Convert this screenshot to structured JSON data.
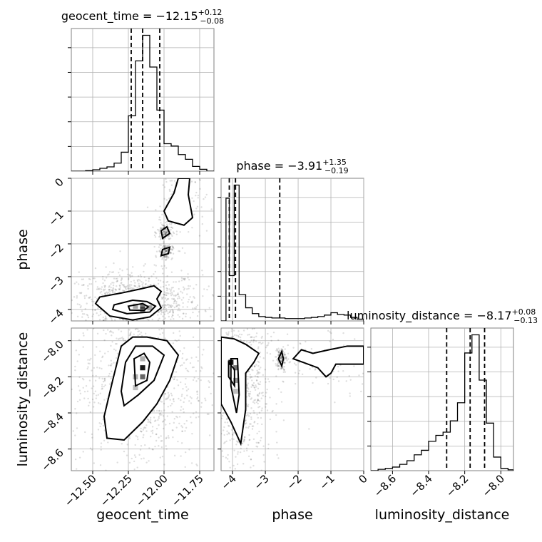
{
  "chart_data": {
    "type": "corner",
    "parameters": [
      "geocent_time",
      "phase",
      "luminosity_distance"
    ],
    "axis_labels": {
      "geocent_time": "geocent_time",
      "phase": "phase",
      "luminosity_distance": "luminosity_distance"
    },
    "ranges": {
      "geocent_time": [
        -12.65,
        -11.65
      ],
      "phase": [
        -4.35,
        0.0
      ],
      "luminosity_distance": [
        -8.72,
        -7.93
      ]
    },
    "ticks": {
      "geocent_time": [
        {
          "v": -12.5,
          "label": "−12.50"
        },
        {
          "v": -12.25,
          "label": "−12.25"
        },
        {
          "v": -12.0,
          "label": "−12.00"
        },
        {
          "v": -11.75,
          "label": "−11.75"
        }
      ],
      "phase": [
        {
          "v": -4,
          "label": "−4"
        },
        {
          "v": -3,
          "label": "−3"
        },
        {
          "v": -2,
          "label": "−2"
        },
        {
          "v": -1,
          "label": "−1"
        },
        {
          "v": 0,
          "label": "0"
        }
      ],
      "luminosity_distance": [
        {
          "v": -8.6,
          "label": "−8.6"
        },
        {
          "v": -8.4,
          "label": "−8.4"
        },
        {
          "v": -8.2,
          "label": "−8.2"
        },
        {
          "v": -8.0,
          "label": "−8.0"
        }
      ]
    },
    "marginals": [
      {
        "param": "geocent_time",
        "title_prefix": "geocent_time = −12.15",
        "title_sup": "+0.12",
        "title_sub": "−0.08",
        "quantiles": [
          -12.23,
          -12.15,
          -12.03
        ],
        "bin_edges": [
          -12.65,
          -12.6,
          -12.55,
          -12.5,
          -12.45,
          -12.4,
          -12.35,
          -12.3,
          -12.25,
          -12.2,
          -12.15,
          -12.1,
          -12.05,
          -12.0,
          -11.95,
          -11.9,
          -11.85,
          -11.8,
          -11.75,
          -11.7,
          -11.65
        ],
        "counts": [
          0,
          0,
          1,
          3,
          6,
          9,
          17,
          40,
          117,
          233,
          287,
          220,
          129,
          58,
          53,
          35,
          25,
          10,
          4,
          0
        ]
      },
      {
        "param": "phase",
        "title_prefix": "phase = −3.91",
        "title_sup": "+1.35",
        "title_sub": "−0.19",
        "quantiles": [
          -4.1,
          -3.91,
          -2.56
        ],
        "bin_edges": [
          -4.35,
          -4.2,
          -4.1,
          -3.95,
          -3.8,
          -3.6,
          -3.4,
          -3.2,
          -3.0,
          -2.8,
          -2.6,
          -2.4,
          -2.2,
          -2.0,
          -1.8,
          -1.6,
          -1.4,
          -1.2,
          -1.0,
          -0.8,
          -0.6,
          -0.4,
          -0.2,
          0.0
        ],
        "counts": [
          0,
          420,
          155,
          465,
          90,
          45,
          25,
          15,
          12,
          10,
          10,
          8,
          8,
          8,
          10,
          12,
          15,
          20,
          28,
          22,
          20,
          12,
          6
        ]
      },
      {
        "param": "luminosity_distance",
        "title_prefix": "luminosity_distance = −8.17",
        "title_sup": "+0.08",
        "title_sub": "−0.13",
        "quantiles": [
          -8.3,
          -8.17,
          -8.09
        ],
        "bin_edges": [
          -8.72,
          -8.68,
          -8.64,
          -8.6,
          -8.56,
          -8.52,
          -8.48,
          -8.44,
          -8.4,
          -8.36,
          -8.32,
          -8.28,
          -8.24,
          -8.2,
          -8.16,
          -8.12,
          -8.08,
          -8.04,
          -8.0,
          -7.96,
          -7.93
        ],
        "counts": [
          0,
          3,
          5,
          8,
          14,
          22,
          35,
          45,
          65,
          78,
          85,
          110,
          150,
          260,
          300,
          200,
          105,
          30,
          5,
          2
        ]
      }
    ],
    "pairs": [
      {
        "x": "geocent_time",
        "y": "phase",
        "contours": [
          [
            [
              -12.45,
              -3.62
            ],
            [
              -12.3,
              -3.5
            ],
            [
              -12.17,
              -3.38
            ],
            [
              -12.07,
              -3.28
            ],
            [
              -12.02,
              -3.45
            ],
            [
              -12.05,
              -3.68
            ],
            [
              -12.02,
              -3.95
            ],
            [
              -12.1,
              -4.23
            ],
            [
              -12.22,
              -4.32
            ],
            [
              -12.38,
              -4.2
            ],
            [
              -12.48,
              -3.82
            ]
          ],
          [
            [
              -12.35,
              -3.86
            ],
            [
              -12.22,
              -3.72
            ],
            [
              -12.12,
              -3.76
            ],
            [
              -12.06,
              -3.9
            ],
            [
              -12.1,
              -4.08
            ],
            [
              -12.26,
              -4.13
            ],
            [
              -12.36,
              -4.0
            ]
          ],
          [
            [
              -12.25,
              -3.9
            ],
            [
              -12.15,
              -3.82
            ],
            [
              -12.11,
              -3.92
            ],
            [
              -12.14,
              -4.03
            ],
            [
              -12.24,
              -4.02
            ]
          ],
          [
            [
              -12.0,
              -1.0
            ],
            [
              -11.93,
              -0.45
            ],
            [
              -11.9,
              0.0
            ],
            [
              -11.82,
              0.0
            ],
            [
              -11.83,
              -0.5
            ],
            [
              -11.8,
              -1.2
            ],
            [
              -11.86,
              -1.43
            ],
            [
              -11.97,
              -1.3
            ]
          ],
          [
            [
              -12.02,
              -1.6
            ],
            [
              -11.98,
              -1.48
            ],
            [
              -11.96,
              -1.68
            ],
            [
              -12.01,
              -1.83
            ]
          ],
          [
            [
              -12.01,
              -2.17
            ],
            [
              -11.96,
              -2.1
            ],
            [
              -11.97,
              -2.3
            ],
            [
              -12.02,
              -2.36
            ]
          ]
        ],
        "density_cells": [
          {
            "x": -12.2,
            "y": -3.9,
            "level": 0.35
          },
          {
            "x": -12.15,
            "y": -3.9,
            "level": 0.55
          },
          {
            "x": -12.15,
            "y": -4.0,
            "level": 0.5
          },
          {
            "x": -12.1,
            "y": -3.95,
            "level": 0.35
          }
        ]
      },
      {
        "x": "geocent_time",
        "y": "luminosity_distance",
        "contours": [
          [
            [
              -12.28,
              -8.55
            ],
            [
              -12.15,
              -8.45
            ],
            [
              -12.05,
              -8.35
            ],
            [
              -11.96,
              -8.22
            ],
            [
              -11.9,
              -8.08
            ],
            [
              -11.98,
              -8.0
            ],
            [
              -12.12,
              -7.98
            ],
            [
              -12.22,
              -7.98
            ],
            [
              -12.3,
              -8.03
            ],
            [
              -12.36,
              -8.22
            ],
            [
              -12.42,
              -8.42
            ],
            [
              -12.4,
              -8.54
            ]
          ],
          [
            [
              -12.28,
              -8.36
            ],
            [
              -12.18,
              -8.3
            ],
            [
              -12.07,
              -8.22
            ],
            [
              -12.0,
              -8.08
            ],
            [
              -12.08,
              -8.03
            ],
            [
              -12.2,
              -8.03
            ],
            [
              -12.27,
              -8.12
            ],
            [
              -12.3,
              -8.28
            ]
          ],
          [
            [
              -12.2,
              -8.25
            ],
            [
              -12.12,
              -8.22
            ],
            [
              -12.1,
              -8.12
            ],
            [
              -12.14,
              -8.07
            ],
            [
              -12.21,
              -8.1
            ]
          ]
        ],
        "density_cells": [
          {
            "x": -12.2,
            "y": -8.26,
            "level": 0.25
          },
          {
            "x": -12.2,
            "y": -8.2,
            "level": 0.3
          },
          {
            "x": -12.15,
            "y": -8.15,
            "level": 0.9
          },
          {
            "x": -12.15,
            "y": -8.2,
            "level": 0.6
          },
          {
            "x": -12.15,
            "y": -8.1,
            "level": 0.3
          }
        ]
      },
      {
        "x": "phase",
        "y": "luminosity_distance",
        "contours": [
          [
            [
              -4.35,
              -7.98
            ],
            [
              -3.95,
              -7.99
            ],
            [
              -3.6,
              -8.02
            ],
            [
              -3.2,
              -8.07
            ],
            [
              -3.35,
              -8.12
            ],
            [
              -3.6,
              -8.18
            ],
            [
              -3.6,
              -8.38
            ],
            [
              -3.75,
              -8.57
            ],
            [
              -4.05,
              -8.45
            ],
            [
              -4.35,
              -8.35
            ]
          ],
          [
            [
              -4.05,
              -8.1
            ],
            [
              -3.85,
              -8.1
            ],
            [
              -3.8,
              -8.3
            ],
            [
              -3.88,
              -8.4
            ],
            [
              -4.05,
              -8.25
            ]
          ],
          [
            [
              -4.12,
              -8.12
            ],
            [
              -3.94,
              -8.16
            ],
            [
              -3.94,
              -8.25
            ],
            [
              -4.12,
              -8.2
            ]
          ],
          [
            [
              -2.15,
              -8.1
            ],
            [
              -1.9,
              -8.05
            ],
            [
              -1.55,
              -8.07
            ],
            [
              -1.05,
              -8.05
            ],
            [
              -0.5,
              -8.03
            ],
            [
              0.0,
              -8.03
            ],
            [
              0.0,
              -8.13
            ],
            [
              -0.5,
              -8.13
            ],
            [
              -0.85,
              -8.13
            ],
            [
              -1.0,
              -8.18
            ],
            [
              -1.15,
              -8.2
            ],
            [
              -1.4,
              -8.15
            ],
            [
              -1.85,
              -8.12
            ]
          ],
          [
            [
              -2.6,
              -8.1
            ],
            [
              -2.5,
              -8.06
            ],
            [
              -2.45,
              -8.1
            ],
            [
              -2.5,
              -8.14
            ]
          ]
        ],
        "density_cells": [
          {
            "x": -4.05,
            "y": -8.12,
            "level": 0.9
          },
          {
            "x": -3.9,
            "y": -8.15,
            "level": 0.55
          },
          {
            "x": -3.9,
            "y": -8.22,
            "level": 0.4
          },
          {
            "x": -3.9,
            "y": -8.28,
            "level": 0.25
          }
        ]
      }
    ],
    "grid": true
  }
}
